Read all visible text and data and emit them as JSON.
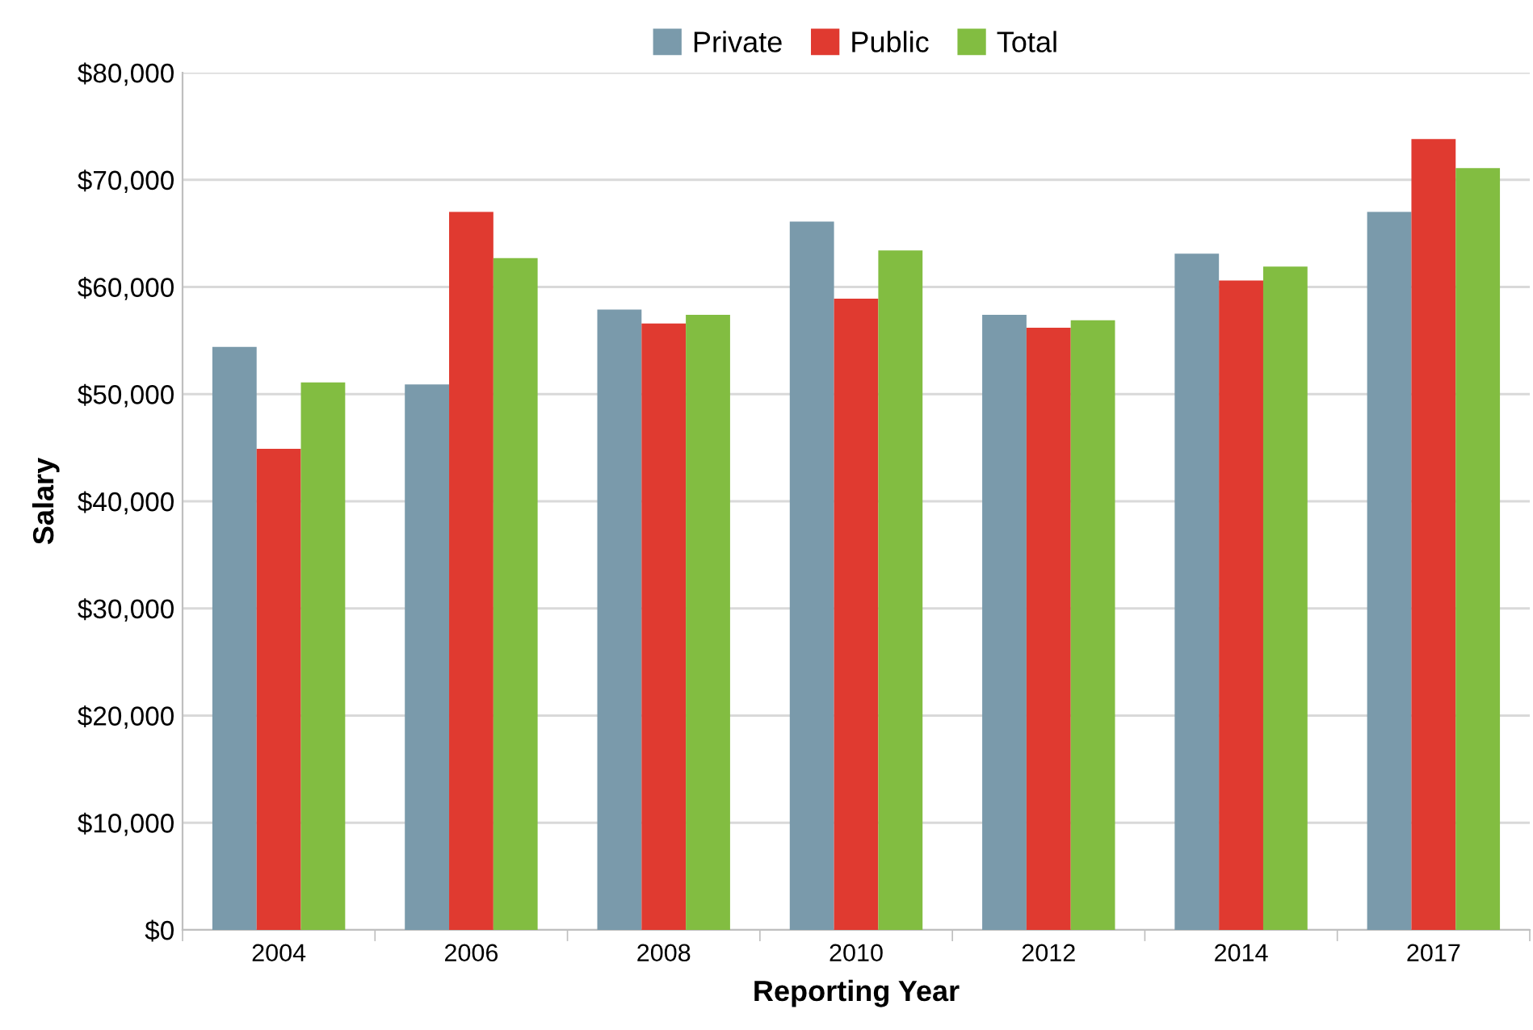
{
  "chart_data": {
    "type": "bar",
    "xlabel": "Reporting Year",
    "ylabel": "Salary",
    "categories": [
      "2004",
      "2006",
      "2008",
      "2010",
      "2012",
      "2014",
      "2017"
    ],
    "series": [
      {
        "name": "Private",
        "color": "#7a9aab",
        "values": [
          54400,
          50900,
          57900,
          66100,
          57400,
          63100,
          67000
        ]
      },
      {
        "name": "Public",
        "color": "#e03a30",
        "values": [
          44900,
          67000,
          56600,
          58900,
          56200,
          60600,
          73800
        ]
      },
      {
        "name": "Total",
        "color": "#82bd41",
        "values": [
          51100,
          62700,
          57400,
          63400,
          56900,
          61900,
          71100
        ]
      }
    ],
    "ylim": [
      0,
      80000
    ],
    "yticks": [
      {
        "value": 0,
        "label": "$0"
      },
      {
        "value": 10000,
        "label": "$10,000"
      },
      {
        "value": 20000,
        "label": "$20,000"
      },
      {
        "value": 30000,
        "label": "$30,000"
      },
      {
        "value": 40000,
        "label": "$40,000"
      },
      {
        "value": 50000,
        "label": "$50,000"
      },
      {
        "value": 60000,
        "label": "$60,000"
      },
      {
        "value": 70000,
        "label": "$70,000"
      },
      {
        "value": 80000,
        "label": "$80,000"
      }
    ],
    "grid": "y",
    "legend": "top"
  }
}
